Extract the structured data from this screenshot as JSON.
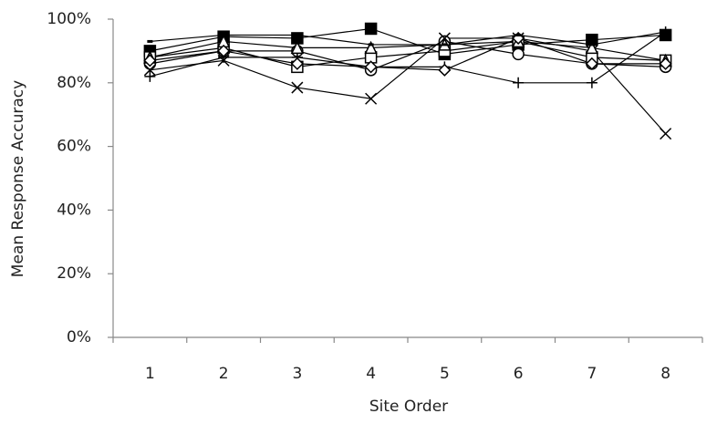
{
  "chart_data": {
    "type": "line",
    "x_label": "Site Order",
    "y_label": "Mean Response Accuracy",
    "categories": [
      "1",
      "2",
      "3",
      "4",
      "5",
      "6",
      "7",
      "8"
    ],
    "ylim": [
      0,
      100
    ],
    "yticks": [
      {
        "value": 0,
        "label": "0%"
      },
      {
        "value": 20,
        "label": "20%"
      },
      {
        "value": 40,
        "label": "40%"
      },
      {
        "value": 60,
        "label": "60%"
      },
      {
        "value": 80,
        "label": "80%"
      },
      {
        "value": 100,
        "label": "100%"
      }
    ],
    "series": [
      {
        "marker": "filled-square",
        "color": "#000000",
        "values": [
          90,
          94.5,
          94,
          97,
          89,
          92,
          93.5,
          95
        ]
      },
      {
        "marker": "circle",
        "color": "#000000",
        "values": [
          86,
          90,
          90,
          84,
          93,
          89,
          86,
          85
        ]
      },
      {
        "marker": "x",
        "color": "#000000",
        "values": [
          84,
          87,
          78.5,
          75,
          94,
          94,
          90,
          64
        ]
      },
      {
        "marker": "plus",
        "color": "#000000",
        "values": [
          82,
          88,
          88,
          85,
          85,
          80,
          80,
          96
        ]
      },
      {
        "marker": "square",
        "color": "#000000",
        "values": [
          88,
          91,
          85,
          88,
          90,
          93,
          88,
          87
        ]
      },
      {
        "marker": "triangle",
        "color": "#000000",
        "values": [
          88,
          93,
          91,
          91,
          92,
          93,
          91,
          87
        ]
      },
      {
        "marker": "diamond",
        "color": "#000000",
        "values": [
          87,
          90,
          86,
          85,
          84,
          94,
          86,
          86
        ]
      },
      {
        "marker": "dash",
        "color": "#000000",
        "values": [
          93,
          95,
          95,
          92,
          92,
          95,
          92,
          96
        ]
      }
    ]
  }
}
